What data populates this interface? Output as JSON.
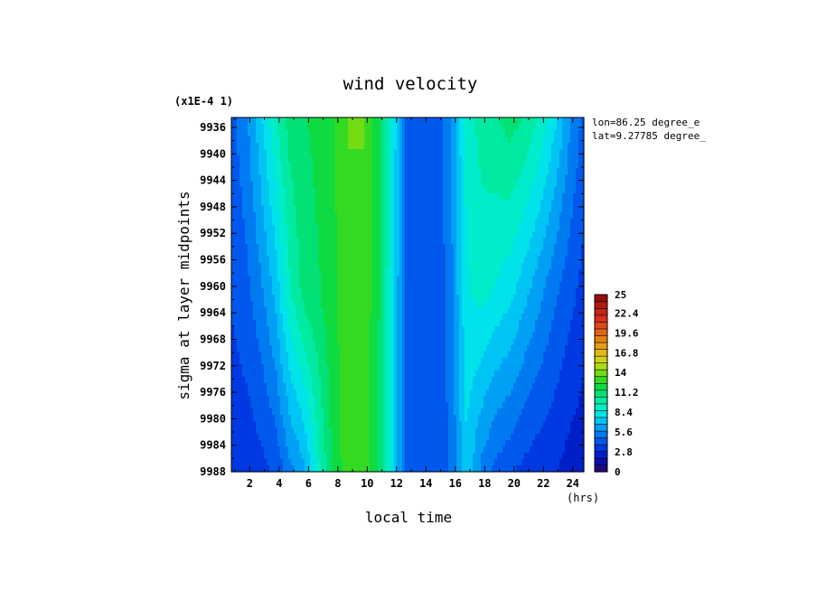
{
  "chart_data": {
    "type": "heatmap",
    "title": "wind velocity",
    "xlabel": "local time",
    "ylabel": "sigma at layer midpoints",
    "x_units": "(hrs)",
    "y_scale_note": "(x1E-4 1)",
    "annotations": [
      "lon=86.25 degree_e",
      "lat=9.27785 degree_"
    ],
    "x_ticks": [
      "2",
      "4",
      "6",
      "8",
      "10",
      "12",
      "14",
      "16",
      "18",
      "20",
      "22",
      "24"
    ],
    "y_ticks": [
      "9936",
      "9940",
      "9944",
      "9948",
      "9952",
      "9956",
      "9960",
      "9964",
      "9968",
      "9972",
      "9976",
      "9980",
      "9984",
      "9988"
    ],
    "xlim": [
      0.75,
      24.75
    ],
    "ylim": [
      9988,
      9934.5
    ],
    "colorbar": {
      "ticks": [
        "25",
        "22.4",
        "19.6",
        "16.8",
        "14",
        "11.2",
        "8.4",
        "5.6",
        "2.8",
        "0"
      ],
      "range": [
        0,
        25
      ]
    },
    "x": [
      0.75,
      1.75,
      2.75,
      3.75,
      4.75,
      5.75,
      6.75,
      7.75,
      8.75,
      9.75,
      10.75,
      11.75,
      12.75,
      13.75,
      14.75,
      15.75,
      16.75,
      17.75,
      18.75,
      19.75,
      20.75,
      21.75,
      22.75,
      23.75,
      24.75
    ],
    "y": [
      9934.5,
      9961,
      9988
    ],
    "values": [
      [
        4.5,
        5.5,
        7.5,
        9.5,
        11.0,
        11.5,
        11.8,
        12.5,
        13.5,
        13.5,
        12.0,
        8.5,
        4.0,
        4.0,
        4.0,
        6.0,
        9.0,
        10.0,
        10.5,
        11.0,
        10.5,
        9.5,
        8.0,
        6.0,
        4.5
      ],
      [
        4.0,
        4.5,
        5.5,
        7.0,
        9.5,
        11.0,
        11.5,
        12.3,
        13.3,
        13.3,
        11.8,
        8.2,
        4.0,
        4.0,
        4.0,
        5.5,
        8.5,
        9.0,
        8.5,
        8.0,
        7.0,
        6.0,
        5.0,
        4.2,
        3.5
      ],
      [
        3.0,
        3.2,
        3.5,
        4.0,
        5.5,
        6.5,
        9.5,
        12.0,
        13.0,
        13.0,
        11.5,
        8.0,
        4.0,
        4.0,
        4.0,
        5.0,
        7.5,
        5.5,
        4.5,
        4.0,
        3.5,
        3.2,
        3.0,
        2.5,
        2.2
      ]
    ]
  }
}
